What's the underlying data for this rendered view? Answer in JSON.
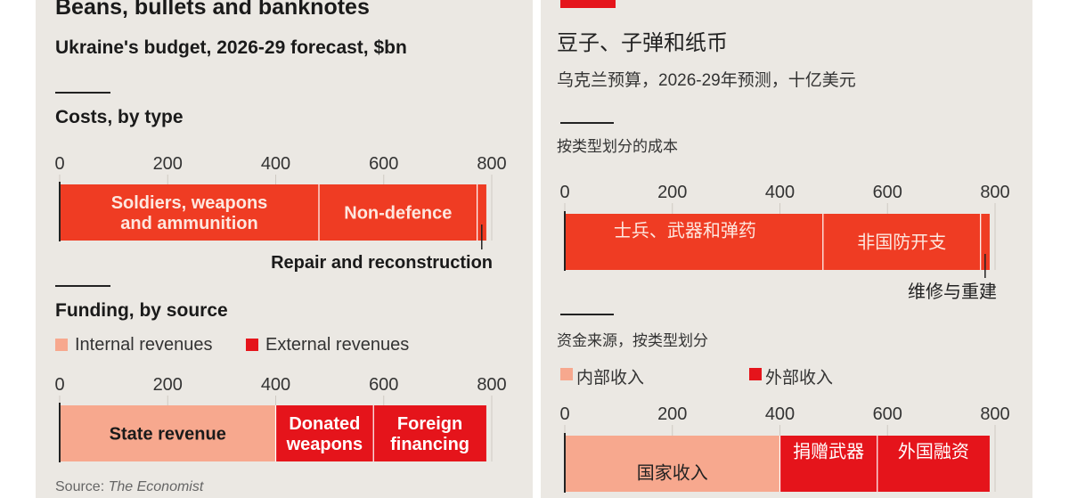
{
  "panels": {
    "en": {
      "title": "Beans, bullets and banknotes",
      "subtitle": "Ukraine's budget, 2026-29 forecast, $bn",
      "costs_heading": "Costs, by type",
      "funding_heading": "Funding, by source",
      "legend": [
        "Internal revenues",
        "External revenues"
      ],
      "source_label": "Source: ",
      "source_name": "The Economist"
    },
    "cn": {
      "title": "豆子、子弹和纸币",
      "subtitle": "乌克兰预算，2026-29年预测，十亿美元",
      "costs_heading": "按类型划分的成本",
      "funding_heading": "资金来源，按类型划分",
      "legend": [
        "内部收入",
        "外部收入"
      ]
    }
  },
  "colors": {
    "costs": "#ef3c23",
    "internal": "#f7a88e",
    "external": "#e5141b",
    "background": "#ebe8e3"
  },
  "chart_data": [
    {
      "type": "bar",
      "orientation": "horizontal-stacked",
      "title": "Costs, by type",
      "ticks": [
        "0",
        "200",
        "400",
        "600",
        "800"
      ],
      "xlim": [
        0,
        800
      ],
      "categories": [
        "Soldiers, weapons and ammunition",
        "Non-defence",
        "Repair and reconstruction"
      ],
      "labels": [
        "Soldiers, weapons\nand ammunition",
        "Non-defence",
        "Repair and reconstruction"
      ],
      "values": [
        480,
        293,
        17
      ],
      "labels_cn": [
        "士兵、武器和弹药",
        "非国防开支",
        "维修与重建"
      ]
    },
    {
      "type": "bar",
      "orientation": "horizontal-stacked",
      "title": "Funding, by source",
      "ticks": [
        "0",
        "200",
        "400",
        "600",
        "800"
      ],
      "xlim": [
        0,
        800
      ],
      "categories": [
        "State revenue",
        "Donated weapons",
        "Foreign financing"
      ],
      "labels": [
        "State revenue",
        "Donated\nweapons",
        "Foreign\nfinancing"
      ],
      "values": [
        400,
        181,
        209
      ],
      "source": [
        "internal",
        "external",
        "external"
      ],
      "labels_cn": [
        "国家收入",
        "捐赠武器",
        "外国融资"
      ]
    }
  ]
}
